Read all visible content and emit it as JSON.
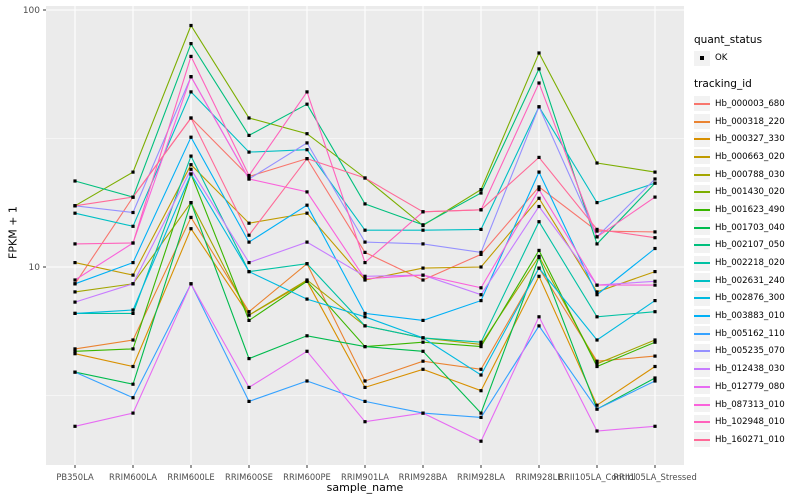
{
  "figure": {
    "y_axis": {
      "title": "FPKM + 1"
    },
    "x_axis": {
      "title": "sample_name"
    },
    "legend": {
      "quant_title": "quant_status",
      "quant_item": "OK",
      "tracking_title": "tracking_id"
    }
  },
  "chart_data": {
    "type": "line",
    "title": "",
    "xlabel": "sample_name",
    "ylabel": "FPKM + 1",
    "y_scale": "log10",
    "ylim": [
      1.7,
      110
    ],
    "y_major_ticks": [
      10,
      100
    ],
    "y_minor_breaks": [
      3.162,
      31.62
    ],
    "grid": true,
    "panel_bg": "#EBEBEB",
    "grid_color": "#FFFFFF",
    "point_marker": {
      "shape": "square",
      "color": "#000000",
      "size": 3.2,
      "meaning": "quant_status OK"
    },
    "legend_position": "right",
    "x_categories": [
      "PB350LA",
      "RRIM600LA",
      "RRIM600LE",
      "RRIM600SE",
      "RRIM600PE",
      "RRIM901LA",
      "RRIM928BA",
      "RRIM928LA",
      "RRIM928LE",
      "RRII105LA_Control",
      "RRII105LA_Stressed"
    ],
    "series": [
      {
        "name": "Hb_000003_680",
        "color": "#F8766D",
        "values": [
          8.6,
          18.7,
          38,
          22.5,
          26.4,
          11.4,
          8.9,
          11.2,
          20.5,
          13.8,
          13.7
        ]
      },
      {
        "name": "Hb_000318_220",
        "color": "#EA8331",
        "values": [
          4.8,
          5.2,
          15.6,
          6.7,
          10.3,
          3.6,
          4.3,
          4.0,
          9.9,
          4.3,
          4.5
        ]
      },
      {
        "name": "Hb_000327_330",
        "color": "#D89000",
        "values": [
          4.6,
          4.1,
          14.1,
          6.5,
          8.8,
          3.4,
          4.0,
          3.3,
          9.2,
          2.9,
          4.1
        ]
      },
      {
        "name": "Hb_000663_020",
        "color": "#C09B00",
        "values": [
          10.4,
          9.3,
          25,
          14.8,
          16.2,
          8.9,
          9.9,
          10.0,
          18.5,
          8.0,
          9.6
        ]
      },
      {
        "name": "Hb_000788_030",
        "color": "#A3A500",
        "values": [
          8.0,
          8.6,
          17.8,
          6.5,
          8.9,
          5.9,
          5.3,
          5.0,
          11.0,
          4.2,
          5.2
        ]
      },
      {
        "name": "Hb_001430_020",
        "color": "#7CAE00",
        "values": [
          17.3,
          23.4,
          87,
          38,
          33,
          22.2,
          14.5,
          20.0,
          68,
          25.4,
          23.4
        ]
      },
      {
        "name": "Hb_001623_490",
        "color": "#39B600",
        "values": [
          4.7,
          4.8,
          23,
          6.2,
          8.8,
          4.9,
          5.1,
          4.9,
          11.6,
          4.1,
          5.1
        ]
      },
      {
        "name": "Hb_001703_040",
        "color": "#00BB4E",
        "values": [
          3.9,
          3.5,
          17.8,
          4.4,
          5.4,
          4.9,
          4.7,
          2.7,
          10.9,
          2.8,
          3.7
        ]
      },
      {
        "name": "Hb_002107_050",
        "color": "#00BF7D",
        "values": [
          21.6,
          18.7,
          74,
          32.5,
          43,
          17.6,
          14.6,
          19.4,
          59,
          12.3,
          21.2
        ]
      },
      {
        "name": "Hb_002218_020",
        "color": "#00C1A3",
        "values": [
          6.6,
          6.6,
          27,
          9.6,
          10.3,
          5.9,
          5.3,
          5.1,
          15,
          6.4,
          6.7
        ]
      },
      {
        "name": "Hb_002631_240",
        "color": "#00BFC4",
        "values": [
          16.2,
          14.4,
          48,
          28,
          28.6,
          13.9,
          13.9,
          14.0,
          42,
          17.8,
          21.2
        ]
      },
      {
        "name": "Hb_002876_300",
        "color": "#00BAE0",
        "values": [
          6.6,
          6.8,
          23,
          9.6,
          7.5,
          6.4,
          5.3,
          3.8,
          9.9,
          5.2,
          7.4
        ]
      },
      {
        "name": "Hb_003883_010",
        "color": "#00B0F6",
        "values": [
          8.6,
          10.4,
          32,
          12.5,
          17.4,
          6.6,
          6.2,
          7.4,
          23.4,
          7.8,
          11.8
        ]
      },
      {
        "name": "Hb_005162_110",
        "color": "#35A2FF",
        "values": [
          3.9,
          3.1,
          8.6,
          3.0,
          3.6,
          3.0,
          2.7,
          2.6,
          5.9,
          2.8,
          3.6
        ]
      },
      {
        "name": "Hb_005235_070",
        "color": "#9590FF",
        "values": [
          17.3,
          16.3,
          55,
          22,
          30.4,
          12.5,
          12.3,
          11.4,
          42,
          13.1,
          22
        ]
      },
      {
        "name": "Hb_012438_030",
        "color": "#C77CFF",
        "values": [
          7.3,
          8.6,
          24,
          10.4,
          12.5,
          9.2,
          9.3,
          7.8,
          17.2,
          8.5,
          8.8
        ]
      },
      {
        "name": "Hb_012779_080",
        "color": "#E76BF3",
        "values": [
          2.4,
          2.7,
          8.6,
          3.4,
          4.7,
          2.5,
          2.7,
          2.1,
          6.4,
          2.3,
          2.4
        ]
      },
      {
        "name": "Hb_087313_010",
        "color": "#FA62DB",
        "values": [
          8.9,
          12.4,
          55,
          22,
          19.6,
          9.0,
          9.3,
          8.3,
          20,
          8.5,
          8.5
        ]
      },
      {
        "name": "Hb_102948_010",
        "color": "#FF62BC",
        "values": [
          12.3,
          12.4,
          66,
          22.7,
          48,
          10.4,
          16.4,
          16.7,
          52,
          13.1,
          18.7
        ]
      },
      {
        "name": "Hb_160271_010",
        "color": "#FF6A98",
        "values": [
          17.3,
          18.7,
          38,
          13.3,
          26.4,
          22.2,
          16.4,
          16.7,
          26.7,
          14.0,
          13.0
        ]
      }
    ],
    "quant_status_legend": {
      "title": "quant_status",
      "items": [
        "OK"
      ]
    },
    "series_legend_title": "tracking_id",
    "axis_text_color": "#4D4D4D"
  }
}
